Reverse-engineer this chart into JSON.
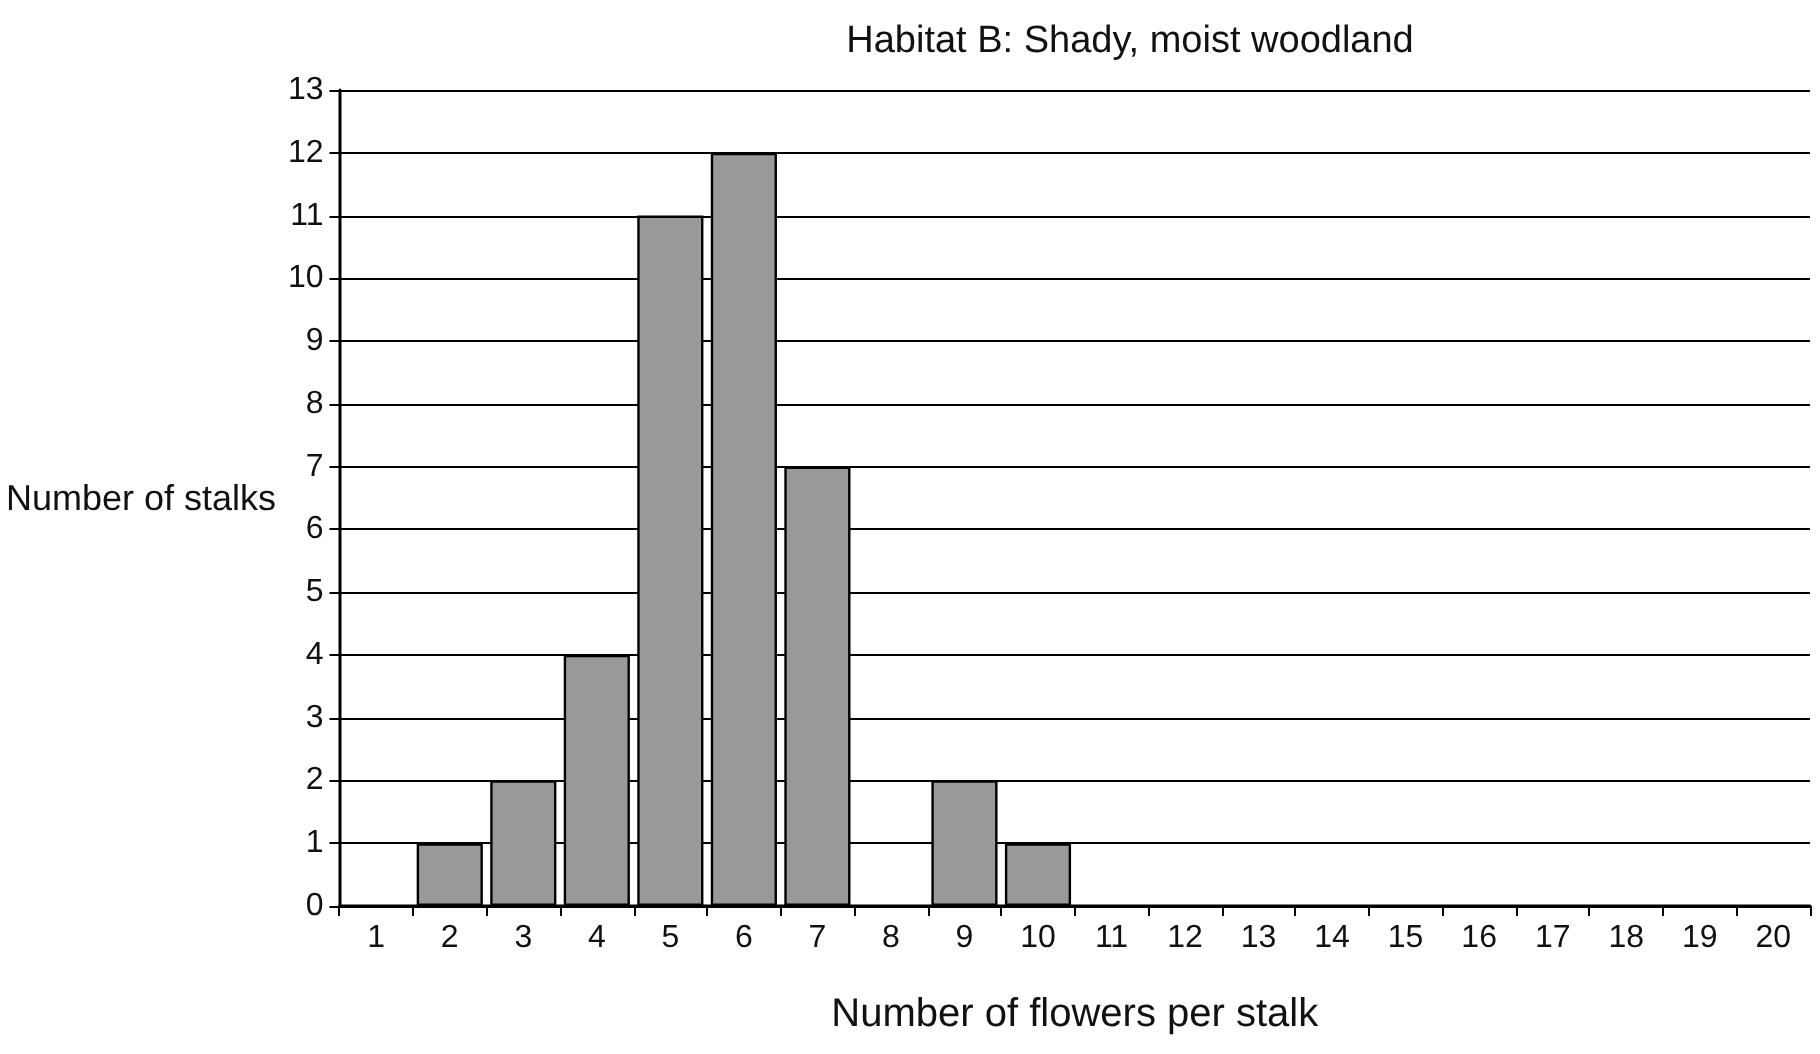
{
  "chart_data": {
    "type": "bar",
    "title": "Habitat B: Shady, moist woodland",
    "xlabel": "Number of flowers per stalk",
    "ylabel": "Number of stalks",
    "categories": [
      "1",
      "2",
      "3",
      "4",
      "5",
      "6",
      "7",
      "8",
      "9",
      "10",
      "11",
      "12",
      "13",
      "14",
      "15",
      "16",
      "17",
      "18",
      "19",
      "20"
    ],
    "values": [
      0,
      1,
      2,
      4,
      11,
      12,
      7,
      0,
      2,
      1,
      0,
      0,
      0,
      0,
      0,
      0,
      0,
      0,
      0,
      0
    ],
    "color": "#999999",
    "ylim": [
      0,
      13
    ],
    "yticks": [
      0,
      1,
      2,
      3,
      4,
      5,
      6,
      7,
      8,
      9,
      10,
      11,
      12,
      13
    ],
    "grid": "y"
  }
}
